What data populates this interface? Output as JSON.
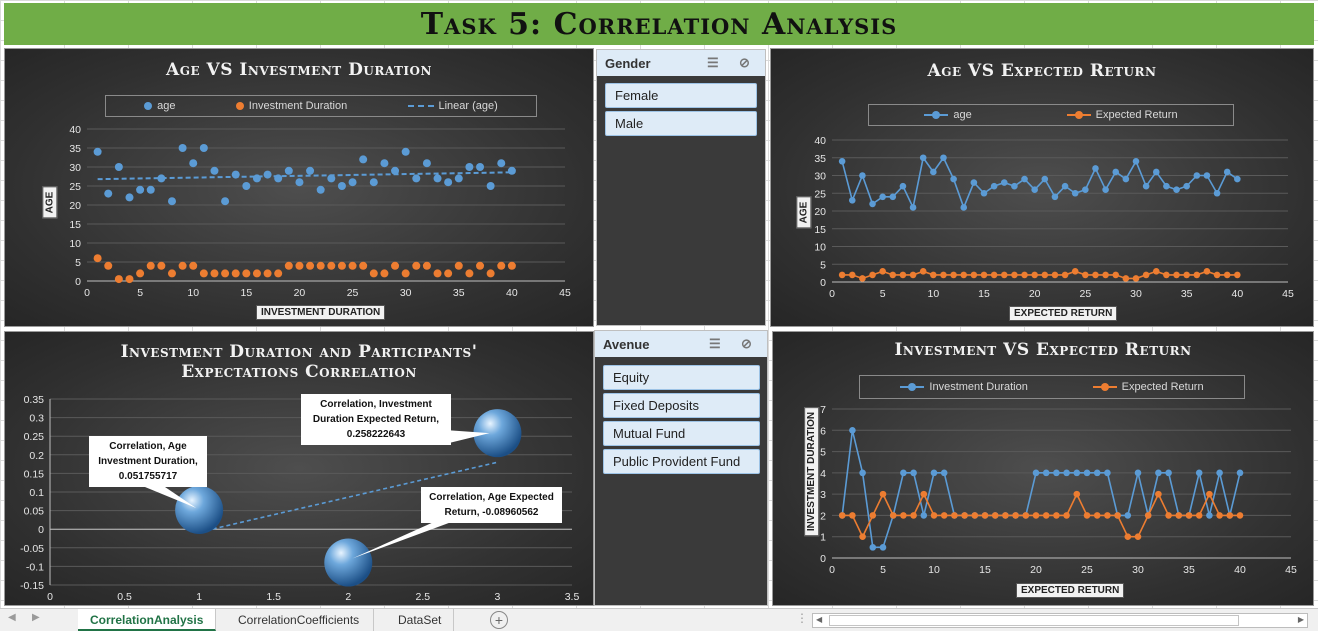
{
  "banner": {
    "title": "Task 5: Correlation Analysis"
  },
  "chart_data": [
    {
      "type": "scatter",
      "title": "Age VS Investment Duration",
      "xlabel": "INVESTMENT DURATION",
      "ylabel": "AGE",
      "xlim": [
        0,
        45
      ],
      "ylim": [
        0,
        40
      ],
      "xticks": [
        "0",
        "5",
        "10",
        "15",
        "20",
        "25",
        "30",
        "35",
        "40",
        "45"
      ],
      "yticks": [
        "0",
        "5",
        "10",
        "15",
        "20",
        "25",
        "30",
        "35",
        "40"
      ],
      "legend": [
        "age",
        "Investment Duration",
        "Linear (age)"
      ],
      "series": [
        {
          "name": "age",
          "color": "#5b9bd5",
          "x": [
            1,
            2,
            3,
            4,
            5,
            6,
            7,
            8,
            9,
            10,
            11,
            12,
            13,
            14,
            15,
            16,
            17,
            18,
            19,
            20,
            21,
            22,
            23,
            24,
            25,
            26,
            27,
            28,
            29,
            30,
            31,
            32,
            33,
            34,
            35,
            36,
            37,
            38,
            39,
            40
          ],
          "values": [
            34,
            23,
            30,
            22,
            24,
            24,
            27,
            21,
            35,
            31,
            35,
            29,
            21,
            28,
            25,
            27,
            28,
            27,
            29,
            26,
            29,
            24,
            27,
            25,
            26,
            32,
            26,
            31,
            29,
            34,
            27,
            31,
            27,
            26,
            27,
            30,
            30,
            25,
            31,
            29
          ]
        },
        {
          "name": "Investment Duration",
          "color": "#ed7d31",
          "x": [
            1,
            2,
            3,
            4,
            5,
            6,
            7,
            8,
            9,
            10,
            11,
            12,
            13,
            14,
            15,
            16,
            17,
            18,
            19,
            20,
            21,
            22,
            23,
            24,
            25,
            26,
            27,
            28,
            29,
            30,
            31,
            32,
            33,
            34,
            35,
            36,
            37,
            38,
            39,
            40
          ],
          "values": [
            6,
            4,
            0.5,
            0.5,
            2,
            4,
            4,
            2,
            4,
            4,
            2,
            2,
            2,
            2,
            2,
            2,
            2,
            2,
            4,
            4,
            4,
            4,
            4,
            4,
            4,
            4,
            2,
            2,
            4,
            2,
            4,
            4,
            2,
            2,
            4,
            2,
            4,
            2,
            4,
            4
          ]
        }
      ],
      "trendline": {
        "name": "Linear (age)",
        "x": [
          1,
          40
        ],
        "values": [
          26.8,
          28.6
        ]
      }
    },
    {
      "type": "line",
      "title": "Age VS Expected Return",
      "xlabel": "EXPECTED RETURN",
      "ylabel": "AGE",
      "xlim": [
        0,
        45
      ],
      "ylim": [
        0,
        40
      ],
      "xticks": [
        "0",
        "5",
        "10",
        "15",
        "20",
        "25",
        "30",
        "35",
        "40",
        "45"
      ],
      "yticks": [
        "0",
        "5",
        "10",
        "15",
        "20",
        "25",
        "30",
        "35",
        "40"
      ],
      "legend": [
        "age",
        "Expected Return"
      ],
      "series": [
        {
          "name": "age",
          "color": "#5b9bd5",
          "values": [
            34,
            23,
            30,
            22,
            24,
            24,
            27,
            21,
            35,
            31,
            35,
            29,
            21,
            28,
            25,
            27,
            28,
            27,
            29,
            26,
            29,
            24,
            27,
            25,
            26,
            32,
            26,
            31,
            29,
            34,
            27,
            31,
            27,
            26,
            27,
            30,
            30,
            25,
            31,
            29
          ]
        },
        {
          "name": "Expected Return",
          "color": "#ed7d31",
          "values": [
            2,
            2,
            1,
            2,
            3,
            2,
            2,
            2,
            3,
            2,
            2,
            2,
            2,
            2,
            2,
            2,
            2,
            2,
            2,
            2,
            2,
            2,
            2,
            3,
            2,
            2,
            2,
            2,
            1,
            1,
            2,
            3,
            2,
            2,
            2,
            2,
            3,
            2,
            2,
            2
          ]
        }
      ]
    },
    {
      "type": "bubble",
      "title": "Investment Duration and Participants' Expectations Correlation",
      "xlim": [
        0,
        3.5
      ],
      "ylim": [
        -0.15,
        0.35
      ],
      "xticks": [
        "0",
        "0.5",
        "1",
        "1.5",
        "2",
        "2.5",
        "3",
        "3.5"
      ],
      "yticks": [
        "-0.15",
        "-0.1",
        "-0.05",
        "0",
        "0.05",
        "0.1",
        "0.15",
        "0.2",
        "0.25",
        "0.3",
        "0.35"
      ],
      "points": [
        {
          "x": 1,
          "y": 0.051755717,
          "label": "Correlation, Age Investment Duration, 0.051755717"
        },
        {
          "x": 2,
          "y": -0.08960562,
          "label": "Correlation, Age Expected Return, -0.08960562"
        },
        {
          "x": 3,
          "y": 0.258222643,
          "label": "Correlation, Investment Duration Expected Return, 0.258222643"
        }
      ],
      "trendline": {
        "x": [
          1,
          3
        ],
        "values": [
          -0.008,
          0.18
        ]
      }
    },
    {
      "type": "line",
      "title": "Investment VS Expected Return",
      "xlabel": "EXPECTED RETURN",
      "ylabel": "INVESTMENT DURATION",
      "xlim": [
        0,
        45
      ],
      "ylim": [
        0,
        7
      ],
      "xticks": [
        "0",
        "5",
        "10",
        "15",
        "20",
        "25",
        "30",
        "35",
        "40",
        "45"
      ],
      "yticks": [
        "0",
        "1",
        "2",
        "3",
        "4",
        "5",
        "6",
        "7"
      ],
      "legend": [
        "Investment Duration",
        "Expected Return"
      ],
      "series": [
        {
          "name": "Investment Duration",
          "color": "#5b9bd5",
          "values": [
            2,
            6,
            4,
            0.5,
            0.5,
            2,
            4,
            4,
            2,
            4,
            4,
            2,
            2,
            2,
            2,
            2,
            2,
            2,
            2,
            4,
            4,
            4,
            4,
            4,
            4,
            4,
            4,
            2,
            2,
            4,
            2,
            4,
            4,
            2,
            2,
            4,
            2,
            4,
            2,
            4
          ]
        },
        {
          "name": "Expected Return",
          "color": "#ed7d31",
          "values": [
            2,
            2,
            1,
            2,
            3,
            2,
            2,
            2,
            3,
            2,
            2,
            2,
            2,
            2,
            2,
            2,
            2,
            2,
            2,
            2,
            2,
            2,
            2,
            3,
            2,
            2,
            2,
            2,
            1,
            1,
            2,
            3,
            2,
            2,
            2,
            2,
            3,
            2,
            2,
            2
          ]
        }
      ]
    }
  ],
  "callouts": {
    "c1": "Correlation, Age Investment Duration, 0.051755717",
    "c2": "Correlation, Investment Duration Expected Return, 0.258222643",
    "c3": "Correlation, Age Expected Return, -0.08960562"
  },
  "slicers": {
    "gender": {
      "title": "Gender",
      "items": [
        "Female",
        "Male"
      ]
    },
    "avenue": {
      "title": "Avenue",
      "items": [
        "Equity",
        "Fixed Deposits",
        "Mutual Fund",
        "Public Provident Fund"
      ]
    }
  },
  "sheet_tabs": {
    "tabs": [
      "CorrelationAnalysis",
      "CorrelationCoefficients",
      "DataSet"
    ],
    "active": "CorrelationAnalysis",
    "add": "+"
  }
}
